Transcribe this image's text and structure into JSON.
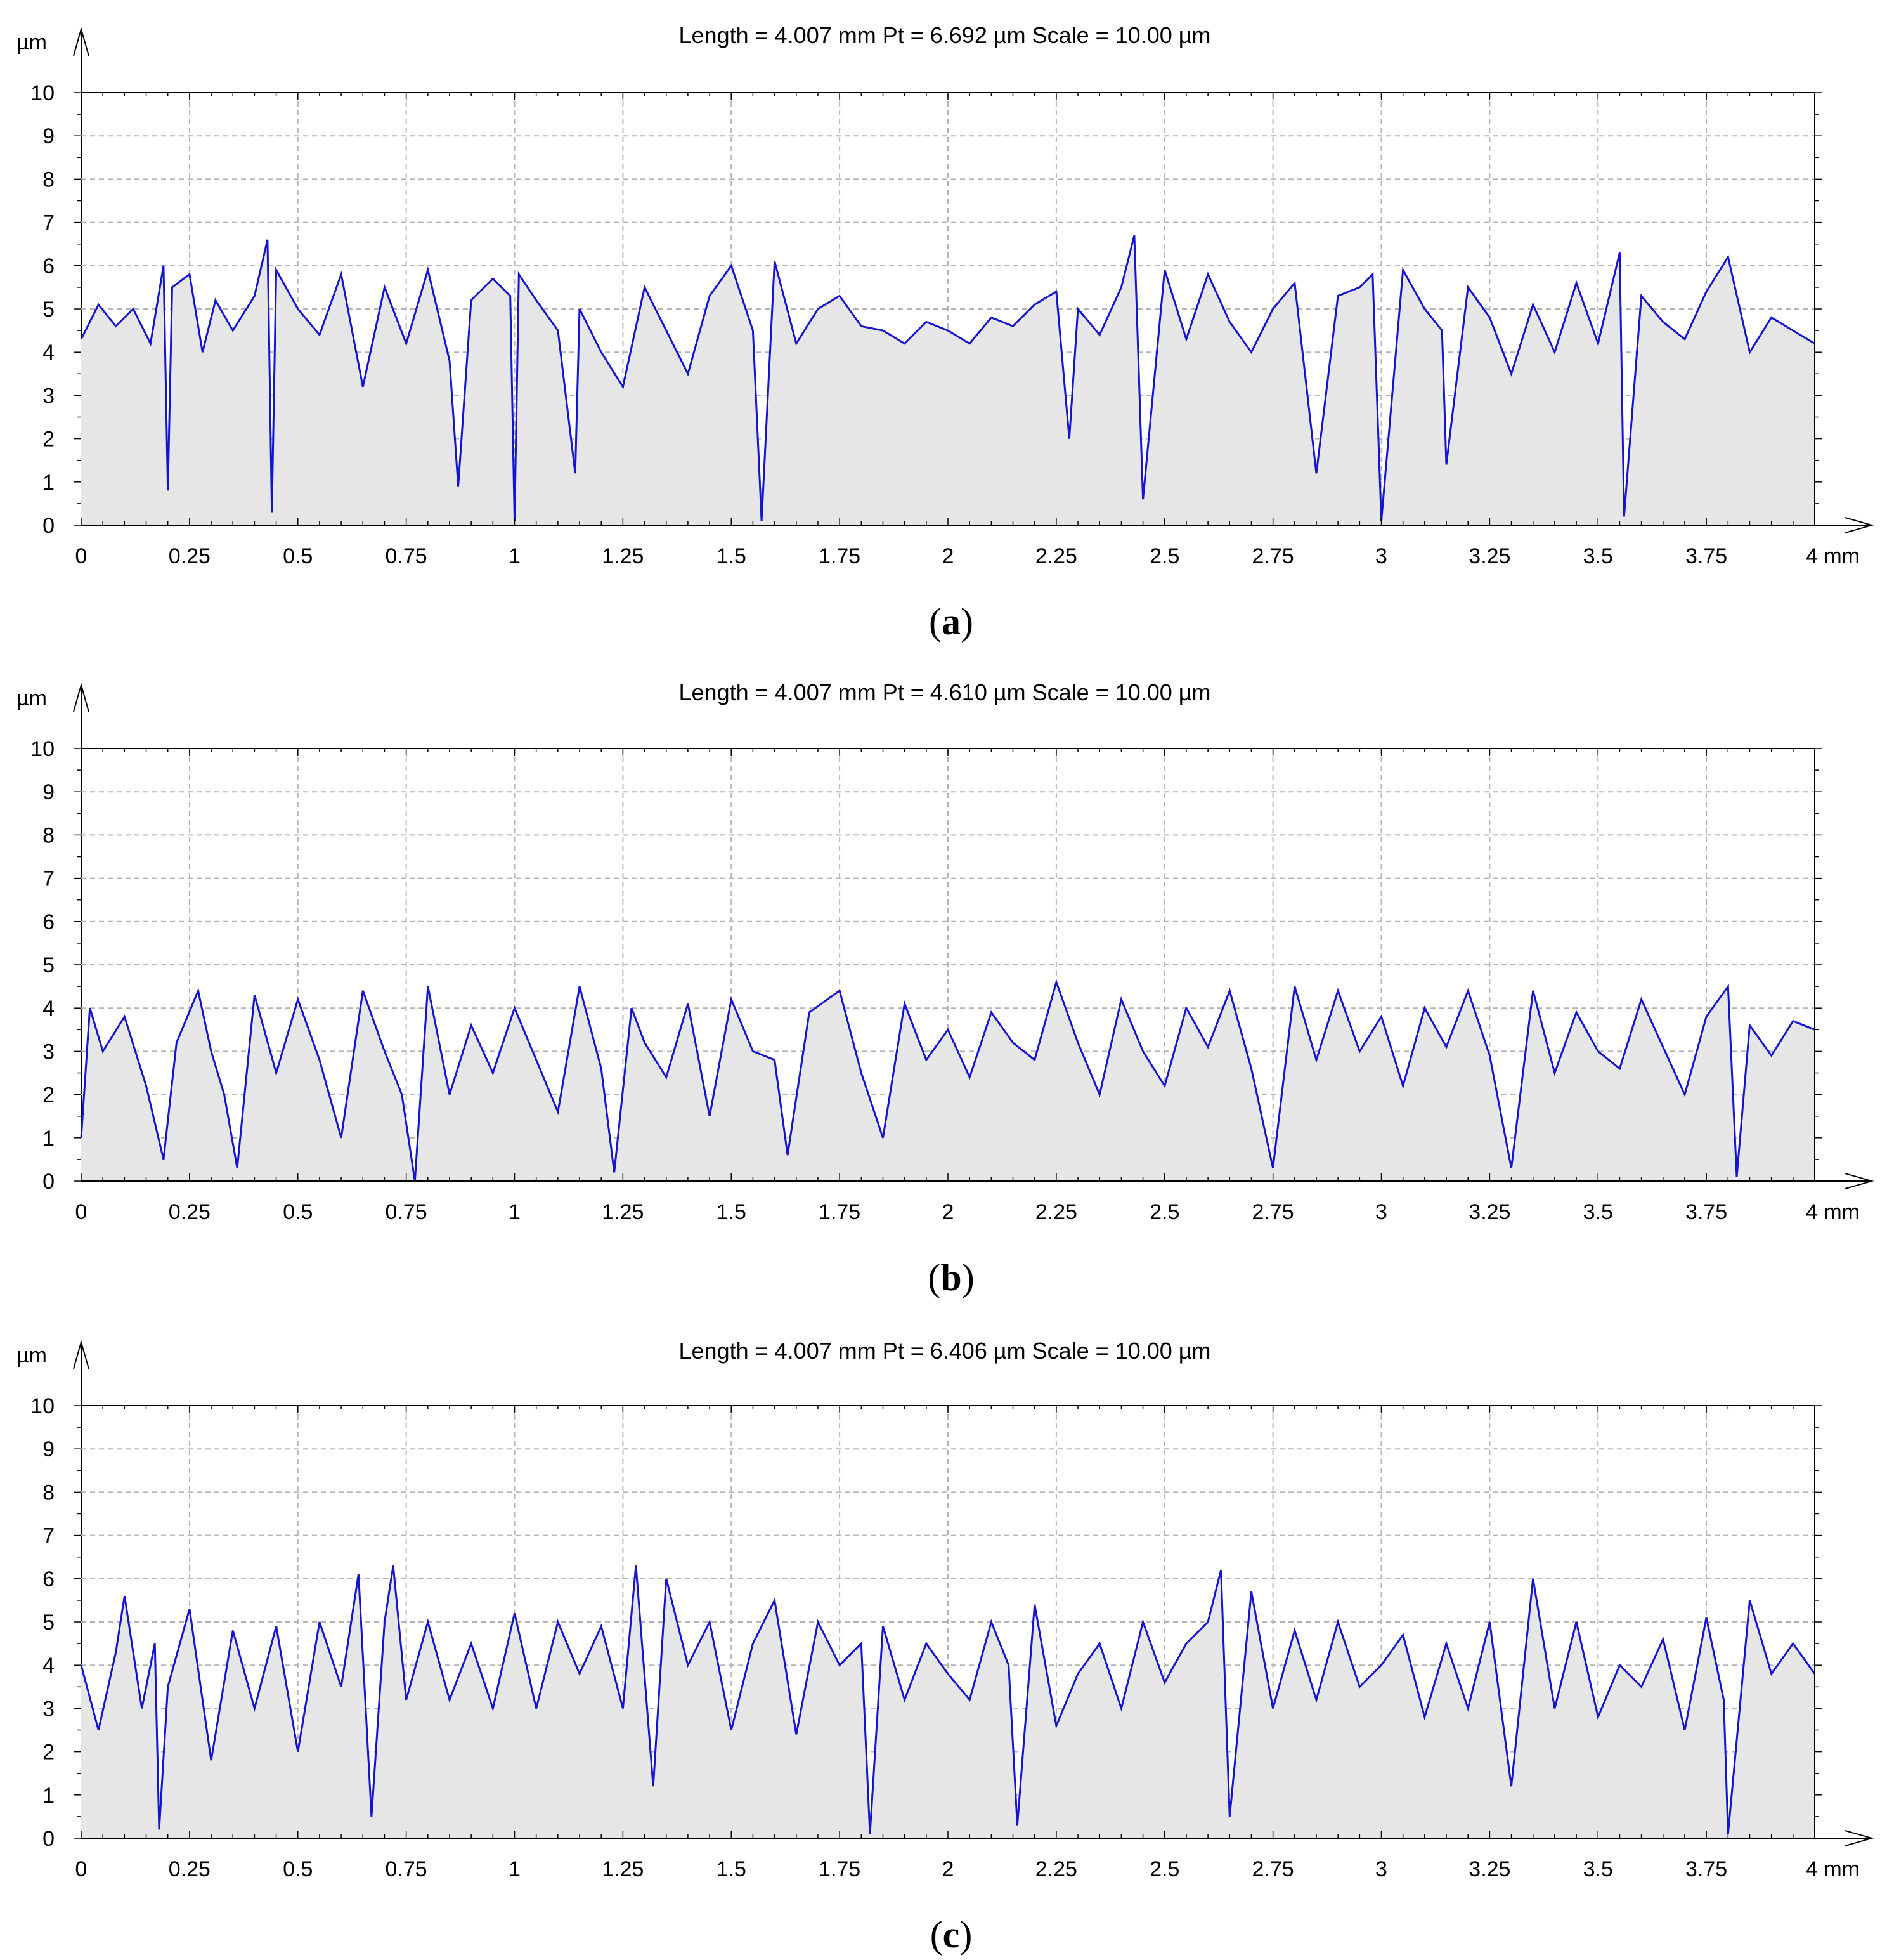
{
  "chart_data": [
    {
      "type": "line",
      "caption": "(a)",
      "caption_letter": "a",
      "header": "Length = 4.007 mm  Pt = 6.692 µm  Scale = 10.00 µm",
      "ylabel": "µm",
      "xunit": "mm",
      "xlim": [
        0,
        4
      ],
      "ylim": [
        0,
        10
      ],
      "x_ticks": [
        0,
        0.25,
        0.5,
        0.75,
        1,
        1.25,
        1.5,
        1.75,
        2,
        2.25,
        2.5,
        2.75,
        3,
        3.25,
        3.5,
        3.75,
        4
      ],
      "x_tick_labels": [
        "0",
        "0.25",
        "0.5",
        "0.75",
        "1",
        "1.25",
        "1.5",
        "1.75",
        "2",
        "2.25",
        "2.5",
        "2.75",
        "3",
        "3.25",
        "3.5",
        "3.75",
        "4 mm"
      ],
      "y_ticks": [
        0,
        1,
        2,
        3,
        4,
        5,
        6,
        7,
        8,
        9,
        10
      ],
      "y_tick_labels": [
        "0",
        "1",
        "2",
        "3",
        "4",
        "5",
        "6",
        "7",
        "8",
        "9",
        "10"
      ],
      "series_color": "#1414d2",
      "fill_color": "#e6e6e6",
      "profile": {
        "x": [
          0,
          0.04,
          0.08,
          0.12,
          0.16,
          0.19,
          0.2,
          0.21,
          0.25,
          0.28,
          0.31,
          0.35,
          0.4,
          0.43,
          0.44,
          0.45,
          0.5,
          0.55,
          0.6,
          0.65,
          0.7,
          0.75,
          0.8,
          0.85,
          0.87,
          0.9,
          0.95,
          0.99,
          1.0,
          1.01,
          1.05,
          1.1,
          1.14,
          1.15,
          1.2,
          1.25,
          1.3,
          1.35,
          1.4,
          1.45,
          1.5,
          1.55,
          1.57,
          1.6,
          1.65,
          1.7,
          1.75,
          1.8,
          1.85,
          1.9,
          1.95,
          2.0,
          2.05,
          2.1,
          2.15,
          2.2,
          2.25,
          2.28,
          2.3,
          2.35,
          2.4,
          2.43,
          2.45,
          2.5,
          2.55,
          2.6,
          2.65,
          2.7,
          2.75,
          2.8,
          2.85,
          2.9,
          2.95,
          2.98,
          3.0,
          3.05,
          3.1,
          3.14,
          3.15,
          3.2,
          3.25,
          3.3,
          3.35,
          3.4,
          3.45,
          3.5,
          3.55,
          3.56,
          3.6,
          3.65,
          3.7,
          3.75,
          3.8,
          3.85,
          3.9,
          3.95,
          4.0
        ],
        "y": [
          4.3,
          5.1,
          4.6,
          5.0,
          4.2,
          6.0,
          0.8,
          5.5,
          5.8,
          4.0,
          5.2,
          4.5,
          5.3,
          6.6,
          0.3,
          5.9,
          5.0,
          4.4,
          5.8,
          3.2,
          5.5,
          4.2,
          5.9,
          3.8,
          0.9,
          5.2,
          5.7,
          5.3,
          0.1,
          5.8,
          5.2,
          4.5,
          1.2,
          5.0,
          4.0,
          3.2,
          5.5,
          4.5,
          3.5,
          5.3,
          6.0,
          4.5,
          0.1,
          6.1,
          4.2,
          5.0,
          5.3,
          4.6,
          4.5,
          4.2,
          4.7,
          4.5,
          4.2,
          4.8,
          4.6,
          5.1,
          5.4,
          2.0,
          5.0,
          4.4,
          5.5,
          6.7,
          0.6,
          5.9,
          4.3,
          5.8,
          4.7,
          4.0,
          5.0,
          5.6,
          1.2,
          5.3,
          5.5,
          5.8,
          0.1,
          5.9,
          5.0,
          4.5,
          1.4,
          5.5,
          4.8,
          3.5,
          5.1,
          4.0,
          5.6,
          4.2,
          6.3,
          0.2,
          5.3,
          4.7,
          4.3,
          5.4,
          6.2,
          4.0,
          4.8,
          4.5,
          4.2
        ]
      }
    },
    {
      "type": "line",
      "caption": "(b)",
      "caption_letter": "b",
      "header": "Length = 4.007 mm  Pt = 4.610 µm  Scale = 10.00 µm",
      "ylabel": "µm",
      "xunit": "mm",
      "xlim": [
        0,
        4
      ],
      "ylim": [
        0,
        10
      ],
      "x_ticks": [
        0,
        0.25,
        0.5,
        0.75,
        1,
        1.25,
        1.5,
        1.75,
        2,
        2.25,
        2.5,
        2.75,
        3,
        3.25,
        3.5,
        3.75,
        4
      ],
      "x_tick_labels": [
        "0",
        "0.25",
        "0.5",
        "0.75",
        "1",
        "1.25",
        "1.5",
        "1.75",
        "2",
        "2.25",
        "2.5",
        "2.75",
        "3",
        "3.25",
        "3.5",
        "3.75",
        "4 mm"
      ],
      "y_ticks": [
        0,
        1,
        2,
        3,
        4,
        5,
        6,
        7,
        8,
        9,
        10
      ],
      "y_tick_labels": [
        "0",
        "1",
        "2",
        "3",
        "4",
        "5",
        "6",
        "7",
        "8",
        "9",
        "10"
      ],
      "series_color": "#1414d2",
      "fill_color": "#e6e6e6",
      "profile": {
        "x": [
          0,
          0.02,
          0.05,
          0.1,
          0.15,
          0.19,
          0.22,
          0.27,
          0.3,
          0.33,
          0.36,
          0.4,
          0.45,
          0.5,
          0.55,
          0.6,
          0.65,
          0.7,
          0.74,
          0.77,
          0.8,
          0.85,
          0.9,
          0.95,
          1.0,
          1.05,
          1.1,
          1.15,
          1.2,
          1.23,
          1.27,
          1.3,
          1.35,
          1.4,
          1.45,
          1.5,
          1.55,
          1.6,
          1.63,
          1.68,
          1.75,
          1.8,
          1.85,
          1.9,
          1.95,
          2.0,
          2.05,
          2.1,
          2.15,
          2.2,
          2.25,
          2.3,
          2.35,
          2.4,
          2.45,
          2.5,
          2.55,
          2.6,
          2.65,
          2.7,
          2.75,
          2.8,
          2.85,
          2.9,
          2.95,
          3.0,
          3.05,
          3.1,
          3.15,
          3.2,
          3.25,
          3.3,
          3.35,
          3.4,
          3.45,
          3.5,
          3.55,
          3.6,
          3.65,
          3.7,
          3.75,
          3.8,
          3.82,
          3.85,
          3.9,
          3.95,
          4.0
        ],
        "y": [
          1.0,
          4.0,
          3.0,
          3.8,
          2.2,
          0.5,
          3.2,
          4.4,
          3.0,
          2.0,
          0.3,
          4.3,
          2.5,
          4.2,
          2.8,
          1.0,
          4.4,
          3.0,
          2.0,
          0.0,
          4.5,
          2.0,
          3.6,
          2.5,
          4.0,
          2.8,
          1.6,
          4.5,
          2.6,
          0.2,
          4.0,
          3.2,
          2.4,
          4.1,
          1.5,
          4.2,
          3.0,
          2.8,
          0.6,
          3.9,
          4.4,
          2.5,
          1.0,
          4.1,
          2.8,
          3.5,
          2.4,
          3.9,
          3.2,
          2.8,
          4.6,
          3.2,
          2.0,
          4.2,
          3.0,
          2.2,
          4.0,
          3.1,
          4.4,
          2.6,
          0.3,
          4.5,
          2.8,
          4.4,
          3.0,
          3.8,
          2.2,
          4.0,
          3.1,
          4.4,
          2.9,
          0.3,
          4.4,
          2.5,
          3.9,
          3.0,
          2.6,
          4.2,
          3.1,
          2.0,
          3.8,
          4.5,
          0.1,
          3.6,
          2.9,
          3.7,
          3.5
        ]
      }
    },
    {
      "type": "line",
      "caption": "(c)",
      "caption_letter": "c",
      "header": "Length = 4.007 mm  Pt = 6.406 µm  Scale = 10.00 µm",
      "ylabel": "µm",
      "xunit": "mm",
      "xlim": [
        0,
        4
      ],
      "ylim": [
        0,
        10
      ],
      "x_ticks": [
        0,
        0.25,
        0.5,
        0.75,
        1,
        1.25,
        1.5,
        1.75,
        2,
        2.25,
        2.5,
        2.75,
        3,
        3.25,
        3.5,
        3.75,
        4
      ],
      "x_tick_labels": [
        "0",
        "0.25",
        "0.5",
        "0.75",
        "1",
        "1.25",
        "1.5",
        "1.75",
        "2",
        "2.25",
        "2.5",
        "2.75",
        "3",
        "3.25",
        "3.5",
        "3.75",
        "4 mm"
      ],
      "y_ticks": [
        0,
        1,
        2,
        3,
        4,
        5,
        6,
        7,
        8,
        9,
        10
      ],
      "y_tick_labels": [
        "0",
        "1",
        "2",
        "3",
        "4",
        "5",
        "6",
        "7",
        "8",
        "9",
        "10"
      ],
      "series_color": "#1414d2",
      "fill_color": "#e6e6e6",
      "profile": {
        "x": [
          0,
          0.04,
          0.08,
          0.1,
          0.14,
          0.17,
          0.18,
          0.2,
          0.25,
          0.3,
          0.35,
          0.4,
          0.45,
          0.5,
          0.55,
          0.6,
          0.64,
          0.67,
          0.7,
          0.72,
          0.75,
          0.8,
          0.85,
          0.9,
          0.95,
          1.0,
          1.05,
          1.1,
          1.15,
          1.2,
          1.25,
          1.28,
          1.32,
          1.35,
          1.4,
          1.45,
          1.5,
          1.55,
          1.6,
          1.65,
          1.7,
          1.75,
          1.8,
          1.82,
          1.85,
          1.9,
          1.95,
          2.0,
          2.05,
          2.1,
          2.14,
          2.16,
          2.2,
          2.25,
          2.3,
          2.35,
          2.4,
          2.45,
          2.5,
          2.55,
          2.6,
          2.63,
          2.65,
          2.7,
          2.75,
          2.8,
          2.85,
          2.9,
          2.95,
          3.0,
          3.05,
          3.1,
          3.15,
          3.2,
          3.25,
          3.3,
          3.35,
          3.4,
          3.45,
          3.5,
          3.55,
          3.6,
          3.65,
          3.7,
          3.75,
          3.79,
          3.8,
          3.85,
          3.9,
          3.95,
          4.0
        ],
        "y": [
          4.0,
          2.5,
          4.3,
          5.6,
          3.0,
          4.5,
          0.2,
          3.5,
          5.3,
          1.8,
          4.8,
          3.0,
          4.9,
          2.0,
          5.0,
          3.5,
          6.1,
          0.5,
          5.0,
          6.3,
          3.2,
          5.0,
          3.2,
          4.5,
          3.0,
          5.2,
          3.0,
          5.0,
          3.8,
          4.9,
          3.0,
          6.3,
          1.2,
          6.0,
          4.0,
          5.0,
          2.5,
          4.5,
          5.5,
          2.4,
          5.0,
          4.0,
          4.5,
          0.1,
          4.9,
          3.2,
          4.5,
          3.8,
          3.2,
          5.0,
          4.0,
          0.3,
          5.4,
          2.6,
          3.8,
          4.5,
          3.0,
          5.0,
          3.6,
          4.5,
          5.0,
          6.2,
          0.5,
          5.7,
          3.0,
          4.8,
          3.2,
          5.0,
          3.5,
          4.0,
          4.7,
          2.8,
          4.5,
          3.0,
          5.0,
          1.2,
          6.0,
          3.0,
          5.0,
          2.8,
          4.0,
          3.5,
          4.6,
          2.5,
          5.1,
          3.2,
          0.1,
          5.5,
          3.8,
          4.5,
          3.8
        ]
      }
    }
  ]
}
